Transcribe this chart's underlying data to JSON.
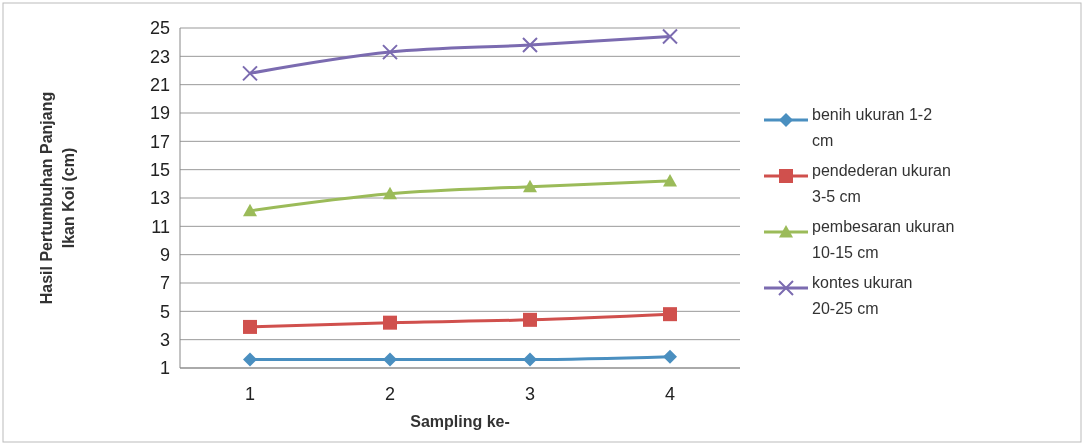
{
  "chart_data": {
    "type": "line",
    "xlabel": "Sampling ke-",
    "ylabel": "Hasil Pertumbuhan Panjang Ikan Koi (cm)",
    "categories": [
      "1",
      "2",
      "3",
      "4"
    ],
    "series": [
      {
        "name": "benih ukuran 1-2 cm",
        "color": "#4a8fc0",
        "marker": "diamond",
        "values": [
          1.6,
          1.6,
          1.6,
          1.8
        ]
      },
      {
        "name": "pendederan ukuran 3-5 cm",
        "color": "#d0504d",
        "marker": "square",
        "values": [
          3.9,
          4.2,
          4.4,
          4.8
        ]
      },
      {
        "name": "pembesaran ukuran 10-15 cm",
        "color": "#9bbb59",
        "marker": "triangle",
        "values": [
          12.1,
          13.3,
          13.8,
          14.2
        ]
      },
      {
        "name": "kontes ukuran 20-25 cm",
        "color": "#7b6bb0",
        "marker": "cross",
        "values": [
          21.8,
          23.3,
          23.8,
          24.4
        ]
      }
    ],
    "ylim": [
      1,
      25
    ],
    "yticks": [
      1,
      3,
      5,
      7,
      9,
      11,
      13,
      15,
      17,
      19,
      21,
      23,
      25
    ],
    "grid": "y",
    "legend": "right"
  }
}
